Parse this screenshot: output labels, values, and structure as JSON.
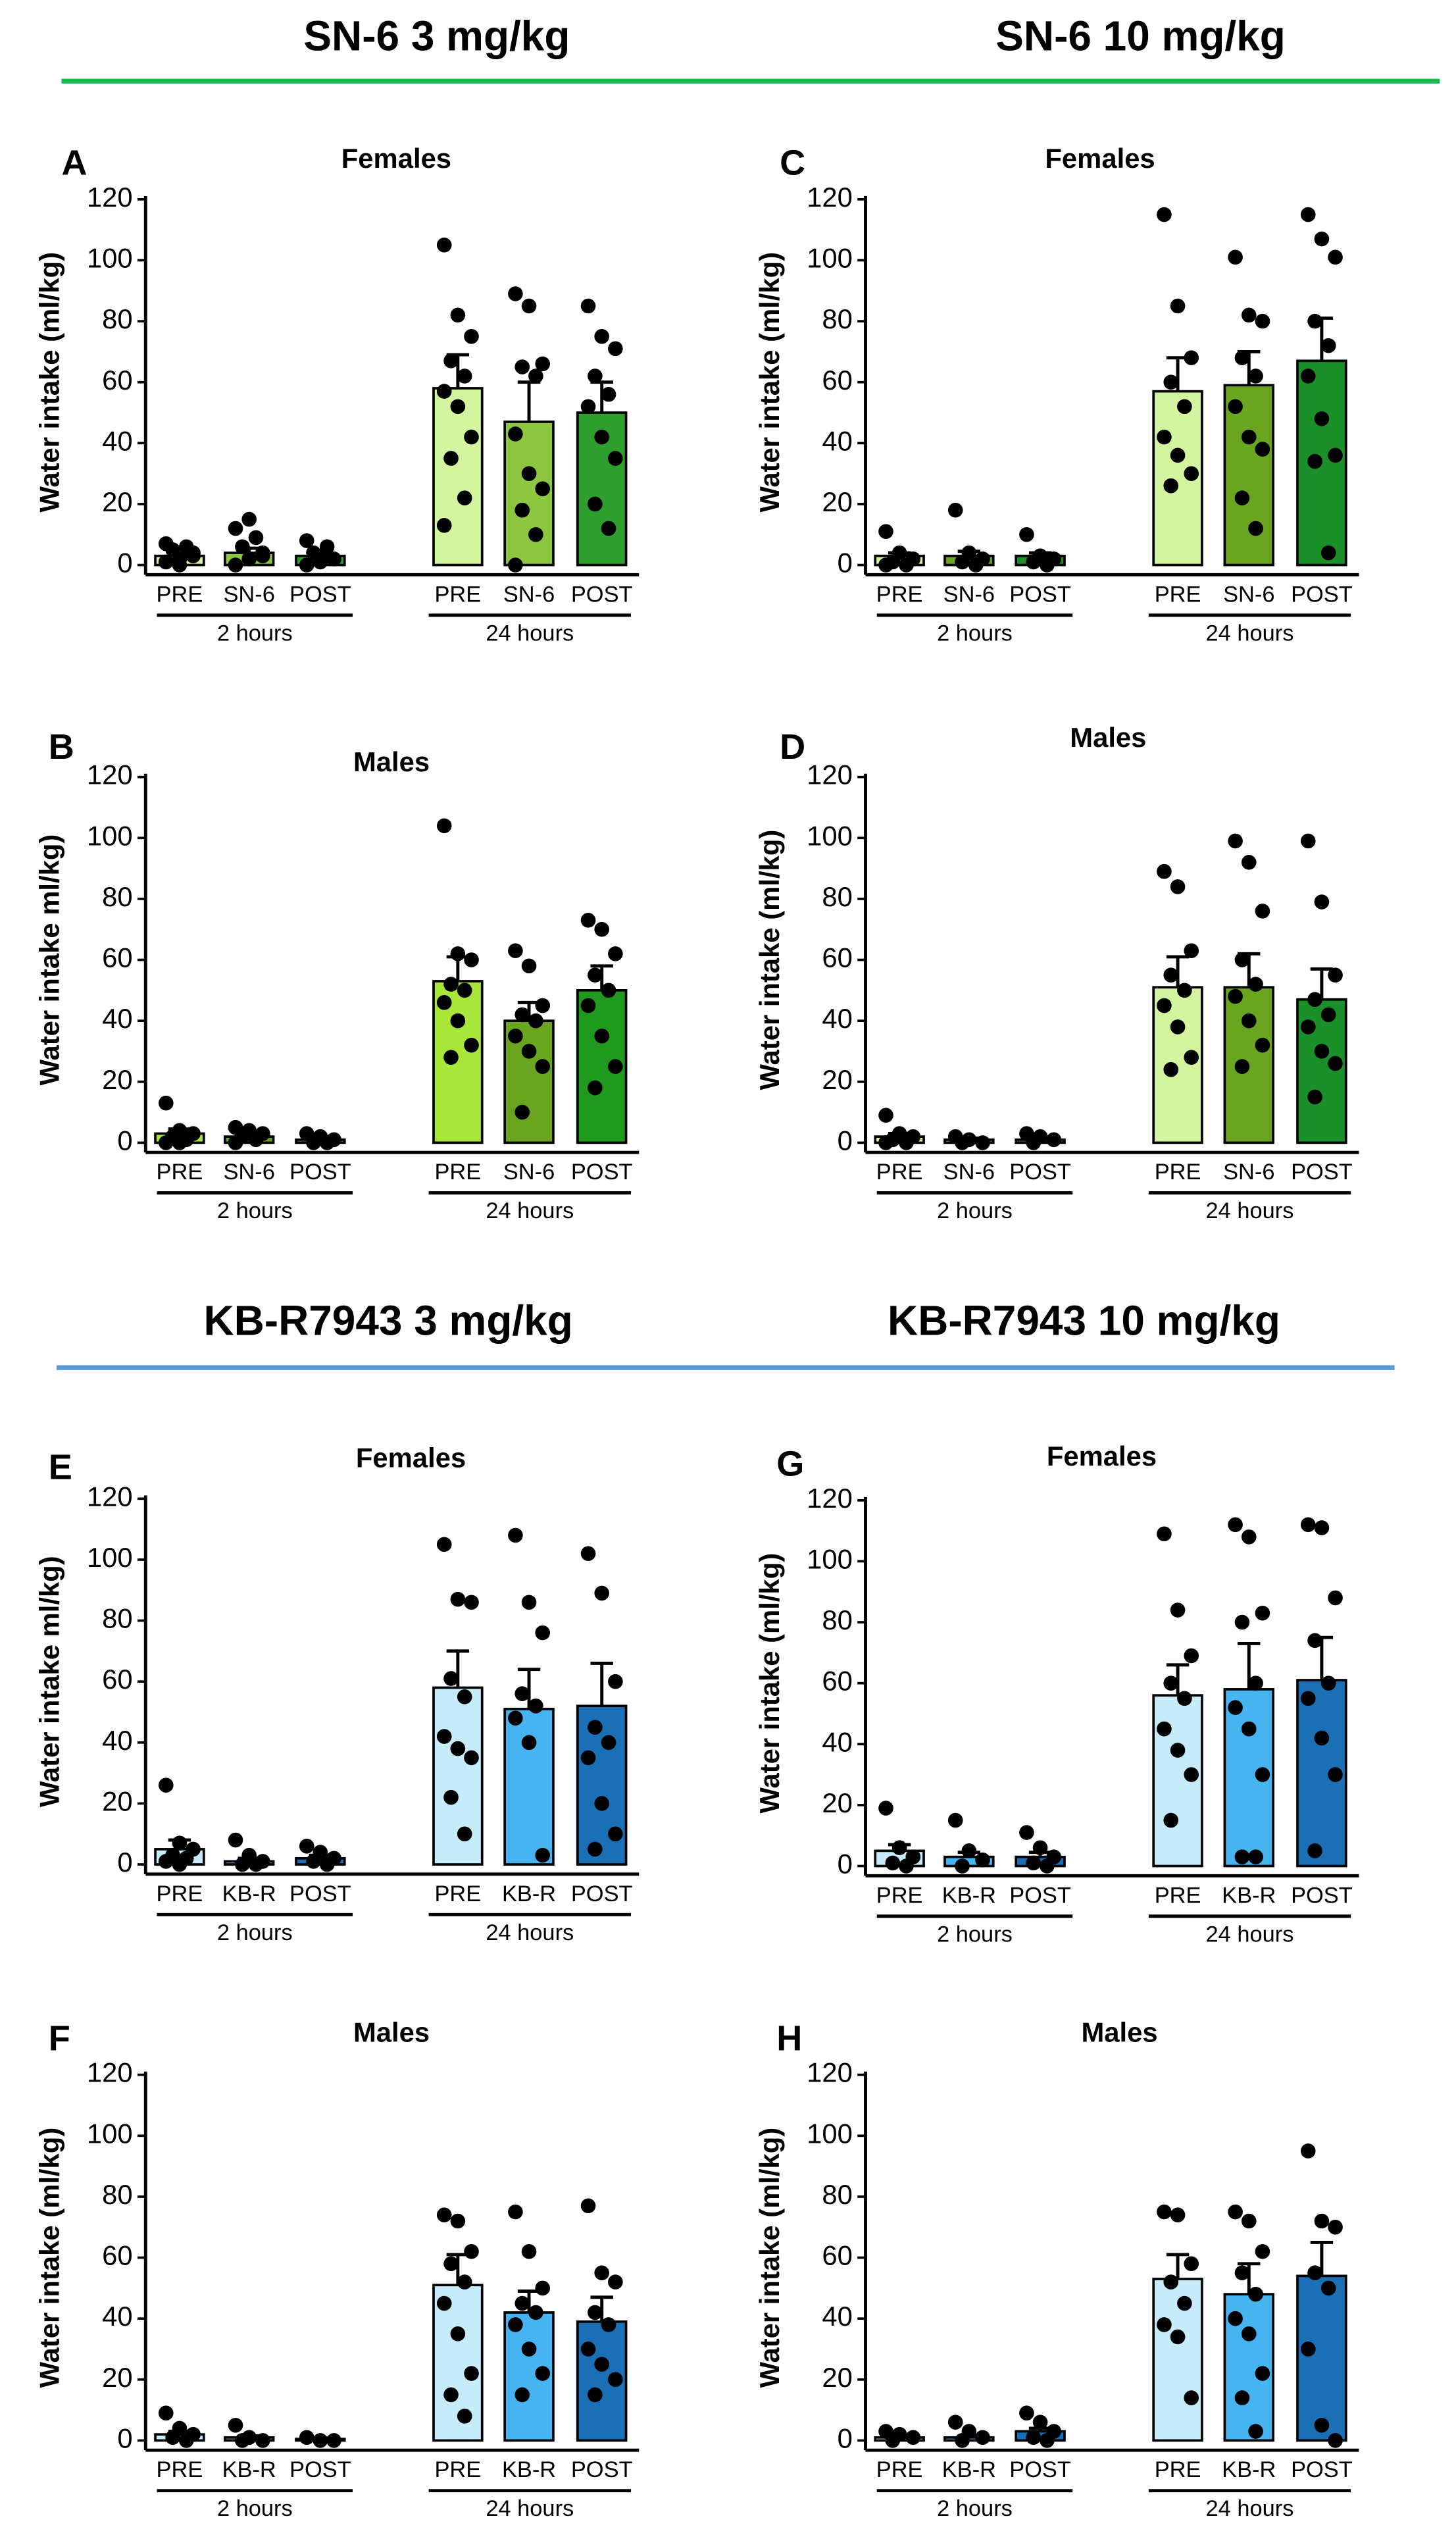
{
  "headers": [
    {
      "titles": [
        "SN-6 3 mg/kg",
        "SN-6 10 mg/kg"
      ],
      "color": "#1db954"
    },
    {
      "titles": [
        "KB-R7943 3 mg/kg",
        "KB-R7943 10 mg/kg"
      ],
      "color": "#5b9bd5"
    }
  ],
  "chart_data": [
    {
      "type": "bar",
      "panel": "A",
      "title": "Females",
      "y_label": "Water intake (ml/kg)",
      "categories": [
        "PRE",
        "SN-6",
        "POST",
        "PRE",
        "SN-6",
        "POST"
      ],
      "groups": [
        "2 hours",
        "24 hours"
      ],
      "values": [
        3,
        4,
        3,
        58,
        47,
        50
      ],
      "errors": [
        1,
        1.5,
        1,
        11,
        13,
        10
      ],
      "colors": [
        "#d4f5a0",
        "#8dc63f",
        "#2e9e2e",
        "#d4f5a0",
        "#8dc63f",
        "#2e9e2e"
      ],
      "points": [
        [
          1,
          2,
          3,
          5,
          6,
          7,
          0,
          4
        ],
        [
          0,
          2,
          4,
          6,
          9,
          12,
          15,
          3
        ],
        [
          0,
          1,
          2,
          4,
          6,
          8,
          3
        ],
        [
          105,
          82,
          75,
          67,
          62,
          57,
          52,
          42,
          35,
          22,
          13
        ],
        [
          89,
          85,
          66,
          65,
          62,
          43,
          30,
          25,
          18,
          10,
          0
        ],
        [
          85,
          75,
          71,
          62,
          56,
          52,
          42,
          35,
          20,
          12
        ]
      ],
      "ylim": [
        0,
        120
      ],
      "yticks": [
        0,
        20,
        40,
        60,
        80,
        100,
        120
      ]
    },
    {
      "type": "bar",
      "panel": "B",
      "title": "Males",
      "y_label": "Water intake ml/kg)",
      "categories": [
        "PRE",
        "SN-6",
        "POST",
        "PRE",
        "SN-6",
        "POST"
      ],
      "groups": [
        "2 hours",
        "24 hours"
      ],
      "values": [
        3,
        2,
        1,
        53,
        40,
        50
      ],
      "errors": [
        1.5,
        1,
        0.5,
        8,
        6,
        8
      ],
      "colors": [
        "#a8e63a",
        "#6aa520",
        "#1f9a1f",
        "#a8e63a",
        "#6aa520",
        "#1f9a1f"
      ],
      "points": [
        [
          13,
          4,
          3,
          2,
          1,
          0,
          0
        ],
        [
          5,
          4,
          3,
          2,
          1,
          0
        ],
        [
          3,
          2,
          1,
          0,
          0
        ],
        [
          104,
          62,
          60,
          52,
          50,
          46,
          40,
          32,
          28
        ],
        [
          63,
          58,
          45,
          42,
          40,
          35,
          30,
          25,
          10
        ],
        [
          73,
          70,
          62,
          55,
          50,
          45,
          35,
          25,
          18
        ]
      ],
      "ylim": [
        0,
        120
      ],
      "yticks": [
        0,
        20,
        40,
        60,
        80,
        100,
        120
      ]
    },
    {
      "type": "bar",
      "panel": "C",
      "title": "Females",
      "y_label": "Water intake (ml/kg)",
      "categories": [
        "PRE",
        "SN-6",
        "POST",
        "PRE",
        "SN-6",
        "POST"
      ],
      "groups": [
        "2 hours",
        "24 hours"
      ],
      "values": [
        3,
        3,
        3,
        57,
        59,
        67
      ],
      "errors": [
        1,
        1.5,
        1,
        11,
        11,
        14
      ],
      "colors": [
        "#d4f5a0",
        "#6aa520",
        "#1a8f2a",
        "#d4f5a0",
        "#6aa520",
        "#1a8f2a"
      ],
      "points": [
        [
          11,
          4,
          2,
          1,
          0,
          0
        ],
        [
          18,
          4,
          2,
          1,
          0
        ],
        [
          10,
          3,
          2,
          1,
          0
        ],
        [
          115,
          85,
          68,
          60,
          52,
          42,
          36,
          30,
          26
        ],
        [
          101,
          82,
          80,
          68,
          62,
          52,
          42,
          38,
          22,
          12
        ],
        [
          115,
          107,
          101,
          80,
          72,
          62,
          48,
          36,
          34,
          4
        ]
      ],
      "ylim": [
        0,
        120
      ],
      "yticks": [
        0,
        20,
        40,
        60,
        80,
        100,
        120
      ]
    },
    {
      "type": "bar",
      "panel": "D",
      "title": "Males",
      "y_label": "Water intake (ml/kg)",
      "categories": [
        "PRE",
        "SN-6",
        "POST",
        "PRE",
        "SN-6",
        "POST"
      ],
      "groups": [
        "2 hours",
        "24 hours"
      ],
      "values": [
        2,
        1,
        1,
        51,
        51,
        47
      ],
      "errors": [
        1,
        0.5,
        0.5,
        10,
        11,
        10
      ],
      "colors": [
        "#d4f5a0",
        "#6aa520",
        "#1a8f2a",
        "#d4f5a0",
        "#6aa520",
        "#1a8f2a"
      ],
      "points": [
        [
          9,
          3,
          2,
          1,
          0,
          0
        ],
        [
          2,
          1,
          0,
          0
        ],
        [
          3,
          2,
          1,
          0
        ],
        [
          89,
          84,
          63,
          55,
          50,
          45,
          38,
          28,
          24
        ],
        [
          99,
          92,
          76,
          60,
          52,
          48,
          40,
          32,
          25
        ],
        [
          99,
          79,
          55,
          47,
          42,
          38,
          30,
          26,
          15
        ]
      ],
      "ylim": [
        0,
        120
      ],
      "yticks": [
        0,
        20,
        40,
        60,
        80,
        100,
        120
      ]
    },
    {
      "type": "bar",
      "panel": "E",
      "title": "Females",
      "y_label": "Water intake ml/kg)",
      "categories": [
        "PRE",
        "KB-R",
        "POST",
        "PRE",
        "KB-R",
        "POST"
      ],
      "groups": [
        "2 hours",
        "24 hours"
      ],
      "values": [
        5,
        1,
        2,
        58,
        51,
        52
      ],
      "errors": [
        3,
        1,
        1,
        12,
        13,
        14
      ],
      "colors": [
        "#c6ecfb",
        "#45b4f0",
        "#1a6fb5",
        "#c6ecfb",
        "#45b4f0",
        "#1a6fb5"
      ],
      "points": [
        [
          26,
          7,
          5,
          3,
          2,
          1,
          0
        ],
        [
          8,
          3,
          1,
          0,
          0
        ],
        [
          6,
          4,
          2,
          1,
          0
        ],
        [
          105,
          87,
          86,
          61,
          55,
          42,
          38,
          35,
          22,
          10
        ],
        [
          108,
          86,
          76,
          56,
          52,
          48,
          40,
          3
        ],
        [
          102,
          89,
          60,
          45,
          40,
          35,
          20,
          10,
          5
        ]
      ],
      "ylim": [
        0,
        120
      ],
      "yticks": [
        0,
        20,
        40,
        60,
        80,
        100,
        120
      ]
    },
    {
      "type": "bar",
      "panel": "F",
      "title": "Males",
      "y_label": "Water intake (ml/kg)",
      "categories": [
        "PRE",
        "KB-R",
        "POST",
        "PRE",
        "KB-R",
        "POST"
      ],
      "groups": [
        "2 hours",
        "24 hours"
      ],
      "values": [
        2,
        1,
        0.5,
        51,
        42,
        39
      ],
      "errors": [
        1,
        0.5,
        0.3,
        10,
        7,
        8
      ],
      "colors": [
        "#c6ecfb",
        "#45b4f0",
        "#1a6fb5",
        "#c6ecfb",
        "#45b4f0",
        "#1a6fb5"
      ],
      "points": [
        [
          9,
          4,
          2,
          1,
          0
        ],
        [
          5,
          1,
          0,
          0
        ],
        [
          1,
          0,
          0
        ],
        [
          74,
          72,
          62,
          58,
          52,
          45,
          35,
          22,
          15,
          8
        ],
        [
          75,
          62,
          50,
          45,
          42,
          38,
          30,
          22,
          15
        ],
        [
          77,
          55,
          52,
          42,
          38,
          30,
          25,
          20,
          15
        ]
      ],
      "ylim": [
        0,
        120
      ],
      "yticks": [
        0,
        20,
        40,
        60,
        80,
        100,
        120
      ]
    },
    {
      "type": "bar",
      "panel": "G",
      "title": "Females",
      "y_label": "Water intake (ml/kg)",
      "categories": [
        "PRE",
        "KB-R",
        "POST",
        "PRE",
        "KB-R",
        "POST"
      ],
      "groups": [
        "2 hours",
        "24 hours"
      ],
      "values": [
        5,
        3,
        3,
        56,
        58,
        61
      ],
      "errors": [
        2,
        1.5,
        1.5,
        10,
        15,
        14
      ],
      "colors": [
        "#c6ecfb",
        "#45b4f0",
        "#1a6fb5",
        "#c6ecfb",
        "#45b4f0",
        "#1a6fb5"
      ],
      "points": [
        [
          19,
          6,
          3,
          1,
          0
        ],
        [
          15,
          5,
          2,
          0
        ],
        [
          11,
          6,
          3,
          1,
          0
        ],
        [
          109,
          84,
          69,
          60,
          55,
          45,
          38,
          30,
          15
        ],
        [
          112,
          108,
          83,
          80,
          60,
          52,
          45,
          30,
          3,
          3
        ],
        [
          112,
          111,
          88,
          74,
          60,
          55,
          42,
          30,
          5
        ]
      ],
      "ylim": [
        0,
        120
      ],
      "yticks": [
        0,
        20,
        40,
        60,
        80,
        100,
        120
      ]
    },
    {
      "type": "bar",
      "panel": "H",
      "title": "Males",
      "y_label": "Water intake (ml/kg)",
      "categories": [
        "PRE",
        "KB-R",
        "POST",
        "PRE",
        "KB-R",
        "POST"
      ],
      "groups": [
        "2 hours",
        "24 hours"
      ],
      "values": [
        1,
        1,
        3,
        53,
        48,
        54
      ],
      "errors": [
        0.5,
        0.5,
        1,
        8,
        10,
        11
      ],
      "colors": [
        "#c6ecfb",
        "#45b4f0",
        "#1a6fb5",
        "#c6ecfb",
        "#45b4f0",
        "#1a6fb5"
      ],
      "points": [
        [
          3,
          2,
          1,
          0
        ],
        [
          6,
          3,
          1,
          0
        ],
        [
          9,
          6,
          3,
          1,
          0
        ],
        [
          75,
          74,
          58,
          52,
          45,
          38,
          34,
          14
        ],
        [
          75,
          72,
          62,
          55,
          48,
          40,
          35,
          22,
          14,
          3
        ],
        [
          95,
          72,
          70,
          55,
          50,
          30,
          5,
          0
        ]
      ],
      "ylim": [
        0,
        120
      ],
      "yticks": [
        0,
        20,
        40,
        60,
        80,
        100,
        120
      ]
    }
  ]
}
